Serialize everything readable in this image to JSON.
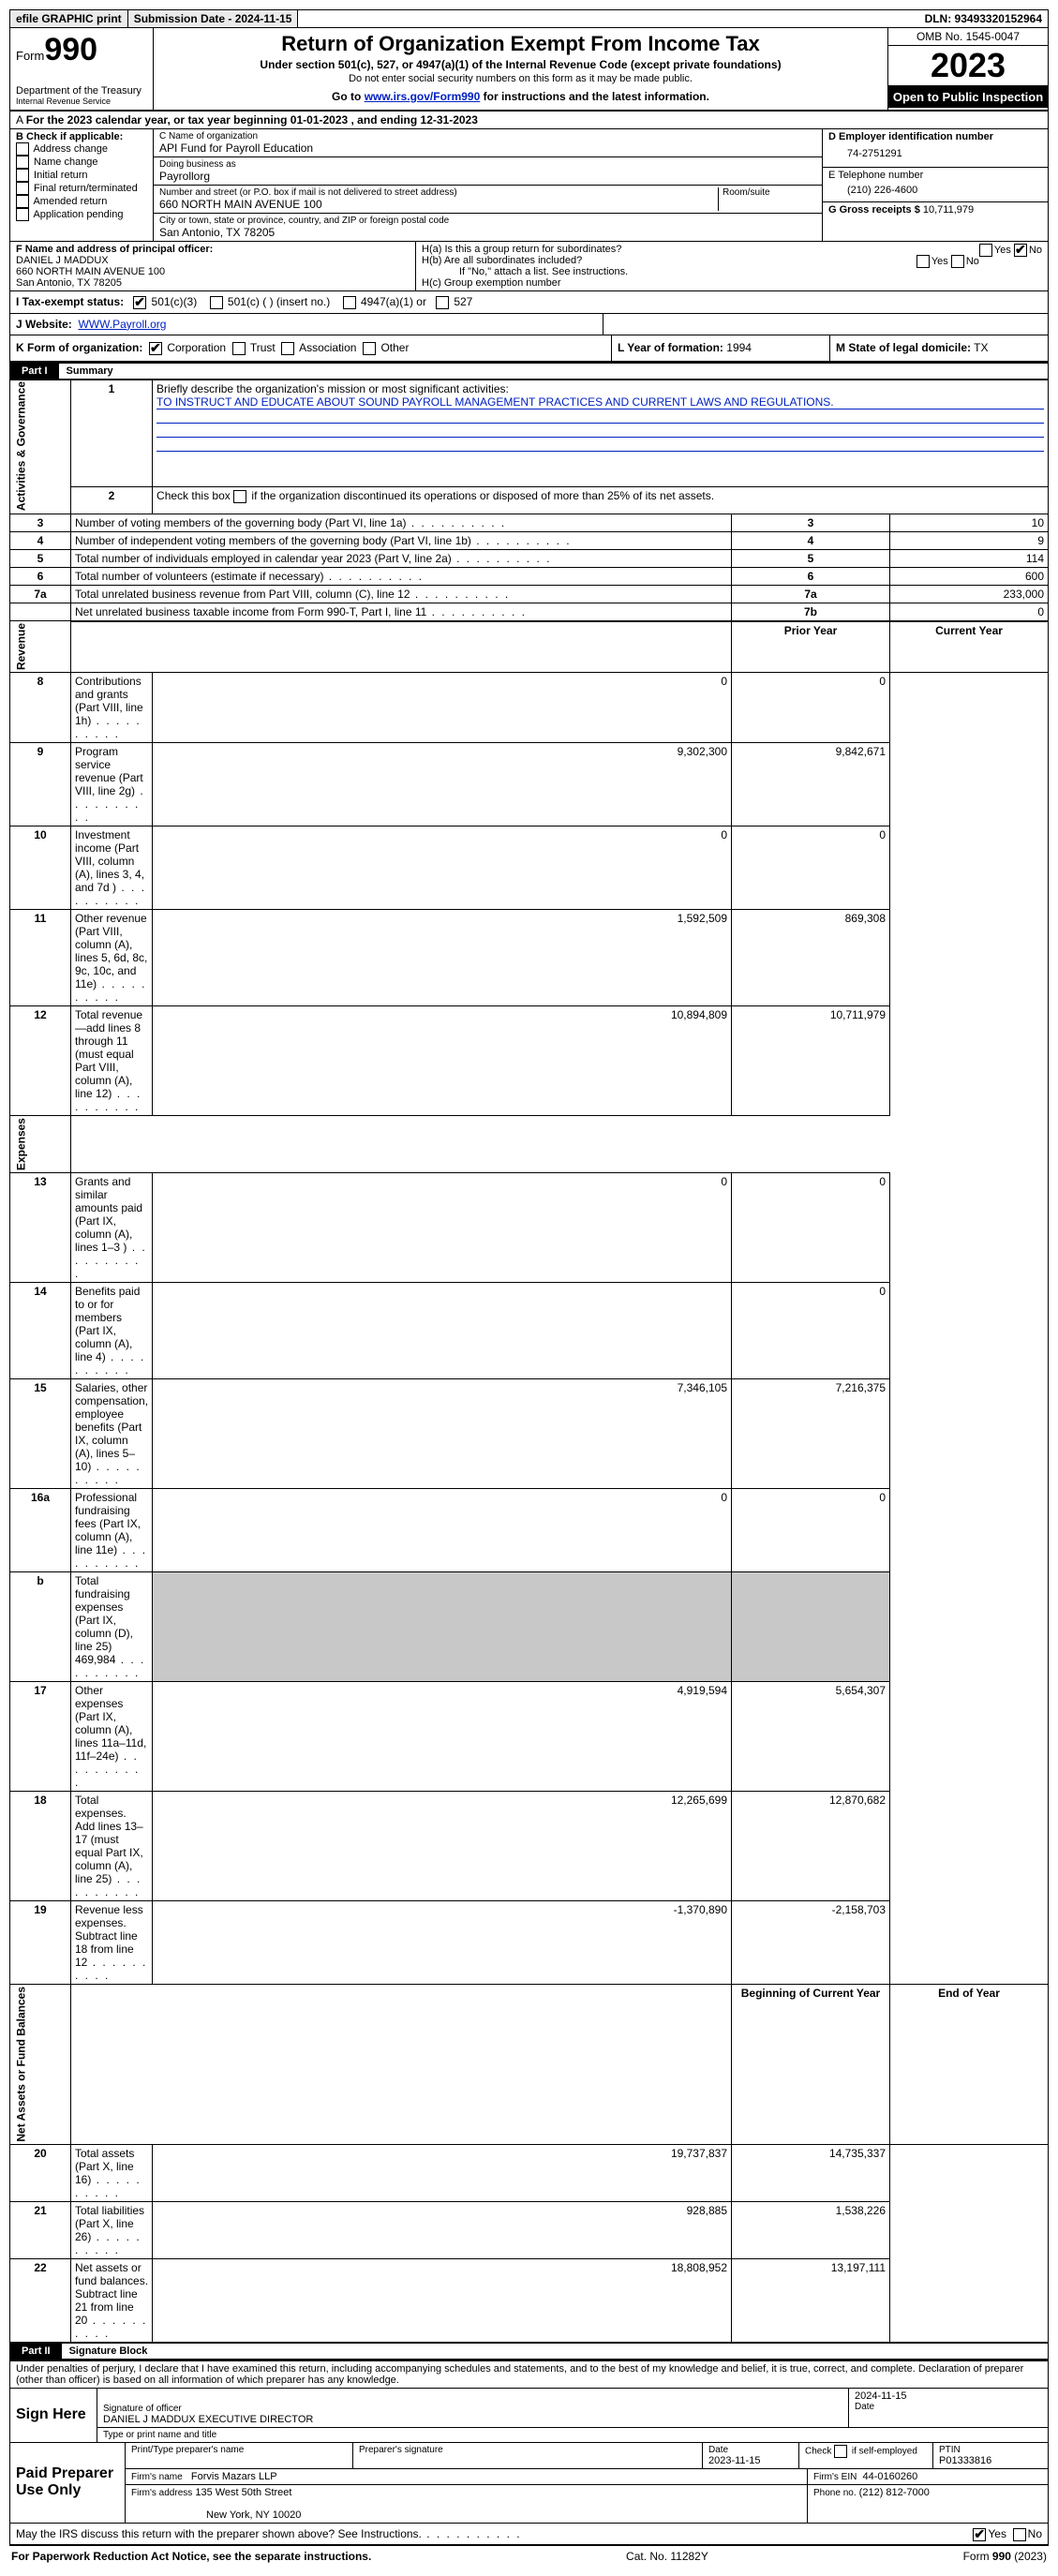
{
  "topbar": {
    "efile": "efile GRAPHIC print",
    "sub_label": "Submission Date - 2024-11-15",
    "dln": "DLN: 93493320152964"
  },
  "header": {
    "form_word": "Form",
    "form_num": "990",
    "dept": "Department of the Treasury",
    "irs": "Internal Revenue Service",
    "title": "Return of Organization Exempt From Income Tax",
    "sub": "Under section 501(c), 527, or 4947(a)(1) of the Internal Revenue Code (except private foundations)",
    "note": "Do not enter social security numbers on this form as it may be made public.",
    "goto_pre": "Go to ",
    "goto_link": "www.irs.gov/Form990",
    "goto_post": " for instructions and the latest information.",
    "omb": "OMB No. 1545-0047",
    "year": "2023",
    "open": "Open to Public Inspection"
  },
  "lineA": "For the 2023 calendar year, or tax year beginning 01-01-2023   , and ending 12-31-2023",
  "boxB": {
    "title": "B Check if applicable:",
    "opts": [
      "Address change",
      "Name change",
      "Initial return",
      "Final return/terminated",
      "Amended return",
      "Application pending"
    ]
  },
  "boxC": {
    "name_lbl": "C Name of organization",
    "name": "API Fund for Payroll Education",
    "dba_lbl": "Doing business as",
    "dba": "Payrollorg",
    "addr_lbl": "Number and street (or P.O. box if mail is not delivered to street address)",
    "addr": "660 NORTH MAIN AVENUE 100",
    "room_lbl": "Room/suite",
    "city_lbl": "City or town, state or province, country, and ZIP or foreign postal code",
    "city": "San Antonio, TX  78205"
  },
  "boxD": {
    "lbl": "D Employer identification number",
    "val": "74-2751291"
  },
  "boxE": {
    "lbl": "E Telephone number",
    "val": "(210) 226-4600"
  },
  "boxG": {
    "lbl": "G Gross receipts $",
    "val": "10,711,979"
  },
  "boxF": {
    "lbl": "F  Name and address of principal officer:",
    "name": "DANIEL J MADDUX",
    "addr1": "660 NORTH MAIN AVENUE 100",
    "addr2": "San Antonio, TX  78205"
  },
  "boxH": {
    "a": "H(a)  Is this a group return for subordinates?",
    "b": "H(b)  Are all subordinates included?",
    "bnote": "If \"No,\" attach a list. See instructions.",
    "c": "H(c)  Group exemption number"
  },
  "boxI": {
    "lbl": "I   Tax-exempt status:",
    "o1": "501(c)(3)",
    "o2": "501(c) (  ) (insert no.)",
    "o3": "4947(a)(1) or",
    "o4": "527"
  },
  "boxJ": {
    "lbl": "J   Website:",
    "val": "WWW.Payroll.org"
  },
  "boxK": {
    "lbl": "K Form of organization:",
    "o1": "Corporation",
    "o2": "Trust",
    "o3": "Association",
    "o4": "Other"
  },
  "boxL": {
    "lbl": "L Year of formation:",
    "val": "1994"
  },
  "boxM": {
    "lbl": "M State of legal domicile:",
    "val": "TX"
  },
  "part1": {
    "tab": "Part I",
    "title": "Summary"
  },
  "summary": {
    "l1_lbl": "Briefly describe the organization's mission or most significant activities:",
    "l1_val": "TO INSTRUCT AND EDUCATE ABOUT SOUND PAYROLL MANAGEMENT PRACTICES AND CURRENT LAWS AND REGULATIONS.",
    "l2": "Check this box      if the organization discontinued its operations or disposed of more than 25% of its net assets.",
    "rows_gov": [
      {
        "n": "3",
        "d": "Number of voting members of the governing body (Part VI, line 1a)",
        "box": "3",
        "v": "10"
      },
      {
        "n": "4",
        "d": "Number of independent voting members of the governing body (Part VI, line 1b)",
        "box": "4",
        "v": "9"
      },
      {
        "n": "5",
        "d": "Total number of individuals employed in calendar year 2023 (Part V, line 2a)",
        "box": "5",
        "v": "114"
      },
      {
        "n": "6",
        "d": "Total number of volunteers (estimate if necessary)",
        "box": "6",
        "v": "600"
      },
      {
        "n": "7a",
        "d": "Total unrelated business revenue from Part VIII, column (C), line 12",
        "box": "7a",
        "v": "233,000"
      },
      {
        "n": "",
        "d": "Net unrelated business taxable income from Form 990-T, Part I, line 11",
        "box": "7b",
        "v": "0"
      }
    ],
    "col_prior": "Prior Year",
    "col_curr": "Current Year",
    "rows_rev": [
      {
        "n": "8",
        "d": "Contributions and grants (Part VIII, line 1h)",
        "p": "0",
        "c": "0"
      },
      {
        "n": "9",
        "d": "Program service revenue (Part VIII, line 2g)",
        "p": "9,302,300",
        "c": "9,842,671"
      },
      {
        "n": "10",
        "d": "Investment income (Part VIII, column (A), lines 3, 4, and 7d )",
        "p": "0",
        "c": "0"
      },
      {
        "n": "11",
        "d": "Other revenue (Part VIII, column (A), lines 5, 6d, 8c, 9c, 10c, and 11e)",
        "p": "1,592,509",
        "c": "869,308"
      },
      {
        "n": "12",
        "d": "Total revenue—add lines 8 through 11 (must equal Part VIII, column (A), line 12)",
        "p": "10,894,809",
        "c": "10,711,979"
      }
    ],
    "rows_exp": [
      {
        "n": "13",
        "d": "Grants and similar amounts paid (Part IX, column (A), lines 1–3 )",
        "p": "0",
        "c": "0"
      },
      {
        "n": "14",
        "d": "Benefits paid to or for members (Part IX, column (A), line 4)",
        "p": "",
        "c": "0"
      },
      {
        "n": "15",
        "d": "Salaries, other compensation, employee benefits (Part IX, column (A), lines 5–10)",
        "p": "7,346,105",
        "c": "7,216,375"
      },
      {
        "n": "16a",
        "d": "Professional fundraising fees (Part IX, column (A), line 11e)",
        "p": "0",
        "c": "0"
      },
      {
        "n": "b",
        "d": "Total fundraising expenses (Part IX, column (D), line 25) 469,984",
        "p": "GREY",
        "c": "GREY"
      },
      {
        "n": "17",
        "d": "Other expenses (Part IX, column (A), lines 11a–11d, 11f–24e)",
        "p": "4,919,594",
        "c": "5,654,307"
      },
      {
        "n": "18",
        "d": "Total expenses. Add lines 13–17 (must equal Part IX, column (A), line 25)",
        "p": "12,265,699",
        "c": "12,870,682"
      },
      {
        "n": "19",
        "d": "Revenue less expenses. Subtract line 18 from line 12",
        "p": "-1,370,890",
        "c": "-2,158,703"
      }
    ],
    "col_begin": "Beginning of Current Year",
    "col_end": "End of Year",
    "rows_net": [
      {
        "n": "20",
        "d": "Total assets (Part X, line 16)",
        "p": "19,737,837",
        "c": "14,735,337"
      },
      {
        "n": "21",
        "d": "Total liabilities (Part X, line 26)",
        "p": "928,885",
        "c": "1,538,226"
      },
      {
        "n": "22",
        "d": "Net assets or fund balances. Subtract line 21 from line 20",
        "p": "18,808,952",
        "c": "13,197,111"
      }
    ],
    "side_gov": "Activities & Governance",
    "side_rev": "Revenue",
    "side_exp": "Expenses",
    "side_net": "Net Assets or Fund Balances"
  },
  "part2": {
    "tab": "Part II",
    "title": "Signature Block"
  },
  "sig": {
    "intro": "Under penalties of perjury, I declare that I have examined this return, including accompanying schedules and statements, and to the best of my knowledge and belief, it is true, correct, and complete. Declaration of preparer (other than officer) is based on all information of which preparer has any knowledge.",
    "sign_here": "Sign Here",
    "sig_off_lbl": "Signature of officer",
    "date_lbl": "Date",
    "date_val": "2024-11-15",
    "officer": "DANIEL J MADDUX  EXECUTIVE DIRECTOR",
    "type_lbl": "Type or print name and title",
    "paid": "Paid Preparer Use Only",
    "prep_name_lbl": "Print/Type preparer's name",
    "prep_sig_lbl": "Preparer's signature",
    "prep_date_lbl": "Date",
    "prep_date": "2023-11-15",
    "check_self": "Check       if self-employed",
    "ptin_lbl": "PTIN",
    "ptin": "P01333816",
    "firm_name_lbl": "Firm's name",
    "firm_name": "Forvis Mazars LLP",
    "firm_ein_lbl": "Firm's EIN",
    "firm_ein": "44-0160260",
    "firm_addr_lbl": "Firm's address",
    "firm_addr1": "135 West 50th Street",
    "firm_addr2": "New York, NY  10020",
    "firm_phone_lbl": "Phone no.",
    "firm_phone": "(212) 812-7000",
    "discuss": "May the IRS discuss this return with the preparer shown above? See Instructions."
  },
  "footer": {
    "l": "For Paperwork Reduction Act Notice, see the separate instructions.",
    "m": "Cat. No. 11282Y",
    "r": "Form 990 (2023)"
  },
  "yes": "Yes",
  "no": "No"
}
